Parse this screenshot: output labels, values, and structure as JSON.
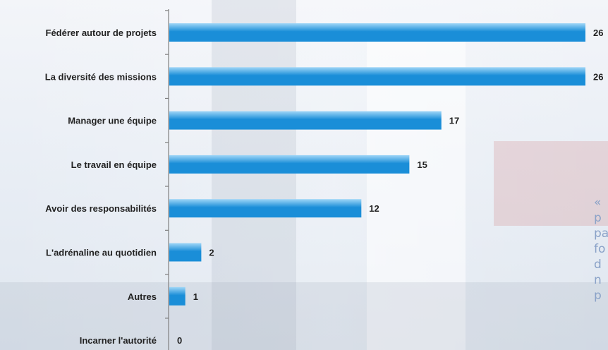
{
  "chart_data": {
    "type": "bar",
    "orientation": "horizontal",
    "categories": [
      "Fédérer autour de projets",
      "La diversité des missions",
      "Manager une équipe",
      "Le travail en équipe",
      "Avoir des responsabilités",
      "L'adrénaline au quotidien",
      "Autres",
      "Incarner l'autorité"
    ],
    "values": [
      26,
      26,
      17,
      15,
      12,
      2,
      1,
      0
    ],
    "xlim": [
      0,
      26
    ],
    "grid": false,
    "legend": "none",
    "bar_color": "#1a8ed8",
    "bar_highlight": "#9fd6f7"
  },
  "side_text": [
    "«",
    "p",
    "pa",
    "fo",
    "d",
    "n",
    "p"
  ]
}
